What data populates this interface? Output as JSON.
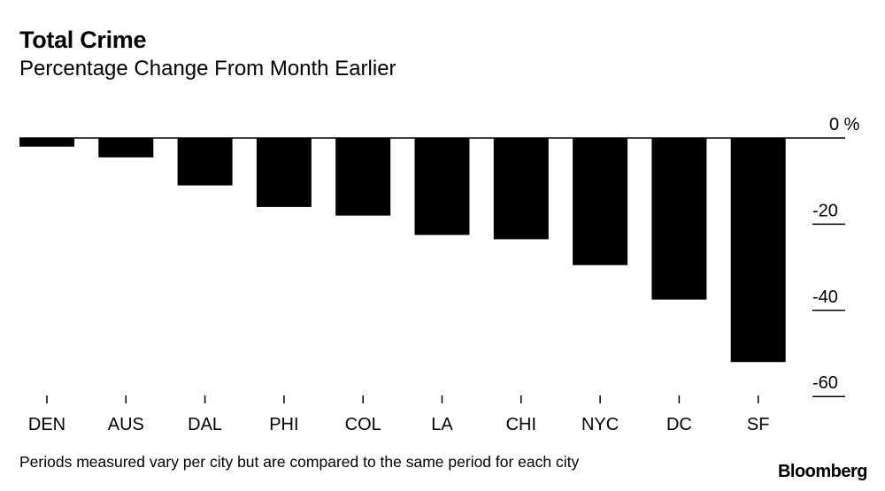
{
  "chart_data": {
    "type": "bar",
    "title": "Total Crime",
    "subtitle": "Percentage Change From Month Earlier",
    "categories": [
      "DEN",
      "AUS",
      "DAL",
      "PHI",
      "COL",
      "LA",
      "CHI",
      "NYC",
      "DC",
      "SF"
    ],
    "values": [
      -2,
      -4.5,
      -11,
      -16,
      -18,
      -22.5,
      -23.5,
      -29.5,
      -37.5,
      -52
    ],
    "ylim": [
      -60,
      0
    ],
    "yticks": [
      0,
      -20,
      -40,
      -60
    ],
    "ytick_labels": [
      "0 %",
      "-20",
      "-40",
      "-60"
    ],
    "xlabel": "",
    "ylabel": "",
    "grid": false,
    "bar_color": "#000000"
  },
  "footnote": "Periods measured vary per city but are compared to the same period for each city",
  "source": "Bloomberg"
}
